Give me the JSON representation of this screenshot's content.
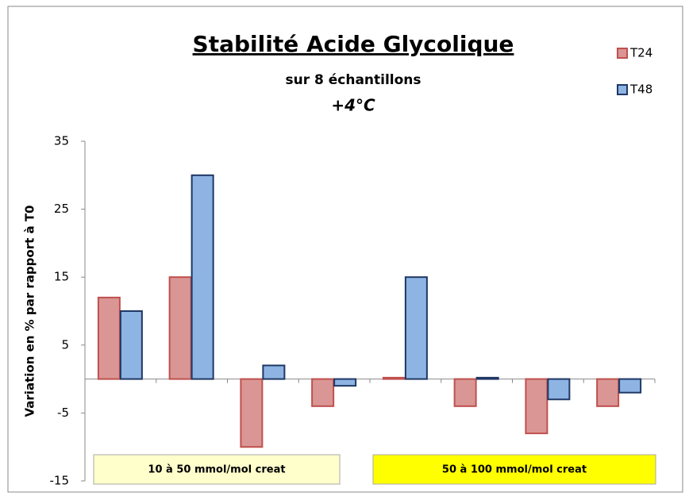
{
  "chart_data": {
    "type": "bar",
    "title": "Stabilité Acide Glycolique",
    "subtitles": [
      "sur 8 échantillons",
      "+4°C"
    ],
    "y_label": "Variation en % par rapport à T0",
    "categories": [
      null,
      null,
      null,
      null,
      null,
      null,
      null,
      null
    ],
    "series": [
      {
        "name": "T24",
        "color": "#d99694",
        "edge": "#c0504d",
        "values": [
          12,
          15,
          -10,
          -4,
          0.2,
          -4,
          -8,
          -4
        ]
      },
      {
        "name": "T48",
        "color": "#8eb4e3",
        "edge": "#1f3864",
        "values": [
          10,
          30,
          2,
          -1,
          15,
          0.2,
          -3,
          -2
        ]
      }
    ],
    "ylim": [
      -15,
      35
    ],
    "yticks": [
      -15,
      -5,
      5,
      15,
      25,
      35
    ],
    "annotations": [
      {
        "text": "10 à 50 mmol/mol creat",
        "color": "#ffffcc"
      },
      {
        "text": "50 à 100 mmol/mol creat",
        "color": "#ffff00"
      }
    ],
    "legend": "top-right"
  }
}
